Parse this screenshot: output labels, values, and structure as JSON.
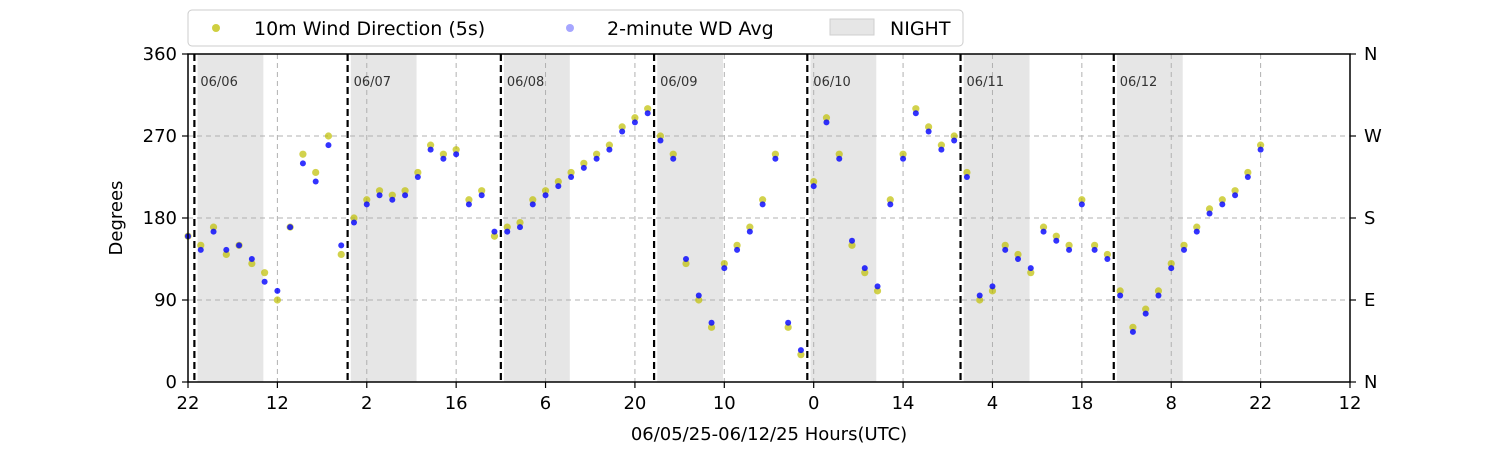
{
  "chart_data": {
    "type": "scatter",
    "xlabel": "06/05/25-06/12/25  Hours(UTC)",
    "ylabel": "Degrees",
    "ylim": [
      0,
      360
    ],
    "xlim_hours": [
      0,
      182
    ],
    "x_ticks": [
      {
        "hour": 0,
        "label": "22"
      },
      {
        "hour": 14,
        "label": "12"
      },
      {
        "hour": 28,
        "label": "2"
      },
      {
        "hour": 42,
        "label": "16"
      },
      {
        "hour": 56,
        "label": "6"
      },
      {
        "hour": 70,
        "label": "20"
      },
      {
        "hour": 84,
        "label": "10"
      },
      {
        "hour": 98,
        "label": "0"
      },
      {
        "hour": 112,
        "label": "14"
      },
      {
        "hour": 126,
        "label": "4"
      },
      {
        "hour": 140,
        "label": "18"
      },
      {
        "hour": 154,
        "label": "8"
      },
      {
        "hour": 168,
        "label": "22"
      },
      {
        "hour": 182,
        "label": "12"
      }
    ],
    "y_ticks": [
      0,
      90,
      180,
      270,
      360
    ],
    "right_ticks": [
      {
        "value": 0,
        "label": "N"
      },
      {
        "value": 90,
        "label": "E"
      },
      {
        "value": 180,
        "label": "S"
      },
      {
        "value": 270,
        "label": "W"
      },
      {
        "value": 360,
        "label": "N"
      }
    ],
    "grid": true,
    "legend_position": "top",
    "legend": [
      {
        "label": "10m Wind Direction (5s)",
        "marker": "dot",
        "color": "#bfbf00"
      },
      {
        "label": "2-minute WD Avg",
        "marker": "dot",
        "color": "#0000ff"
      },
      {
        "label": "NIGHT",
        "marker": "patch",
        "color": "#e6e6e6"
      }
    ],
    "day_boundaries": [
      {
        "hour": 1,
        "label": "06/06"
      },
      {
        "hour": 25,
        "label": "06/07"
      },
      {
        "hour": 49,
        "label": "06/08"
      },
      {
        "hour": 73,
        "label": "06/09"
      },
      {
        "hour": 97,
        "label": "06/10"
      },
      {
        "hour": 121,
        "label": "06/11"
      },
      {
        "hour": 145,
        "label": "06/12"
      }
    ],
    "night_periods": [
      [
        1.5,
        11.8
      ],
      [
        25.5,
        35.8
      ],
      [
        49.5,
        59.8
      ],
      [
        73.5,
        83.8
      ],
      [
        97.5,
        107.8
      ],
      [
        121.5,
        131.8
      ],
      [
        145.5,
        155.8
      ]
    ],
    "series": [
      {
        "name": "10m Wind Direction (5s)",
        "color": "#bfbf00",
        "x": [
          0,
          2,
          4,
          6,
          8,
          10,
          12,
          14,
          16,
          18,
          20,
          22,
          24,
          26,
          28,
          30,
          32,
          34,
          36,
          38,
          40,
          42,
          44,
          46,
          48,
          50,
          52,
          54,
          56,
          58,
          60,
          62,
          64,
          66,
          68,
          70,
          72,
          74,
          76,
          78,
          80,
          82,
          84,
          86,
          88,
          90,
          92,
          94,
          96,
          98,
          100,
          102,
          104,
          106,
          108,
          110,
          112,
          114,
          116,
          118,
          120,
          122,
          124,
          126,
          128,
          130,
          132,
          134,
          136,
          138,
          140,
          142,
          144,
          146,
          148,
          150,
          152,
          154,
          156,
          158,
          160,
          162,
          164,
          166,
          168
        ],
        "y": [
          160,
          150,
          170,
          140,
          150,
          130,
          120,
          90,
          170,
          250,
          230,
          270,
          140,
          180,
          200,
          210,
          205,
          210,
          230,
          260,
          250,
          255,
          200,
          210,
          160,
          170,
          175,
          200,
          210,
          220,
          230,
          240,
          250,
          260,
          280,
          290,
          300,
          270,
          250,
          130,
          90,
          60,
          130,
          150,
          170,
          200,
          250,
          60,
          30,
          220,
          290,
          250,
          150,
          120,
          100,
          200,
          250,
          300,
          280,
          260,
          270,
          230,
          90,
          100,
          150,
          140,
          120,
          170,
          160,
          150,
          200,
          150,
          140,
          100,
          60,
          80,
          100,
          130,
          150,
          170,
          190,
          200,
          210,
          230,
          260
        ]
      },
      {
        "name": "2-minute WD Avg",
        "color": "#0000ff",
        "x": [
          0,
          2,
          4,
          6,
          8,
          10,
          12,
          14,
          16,
          18,
          20,
          22,
          24,
          26,
          28,
          30,
          32,
          34,
          36,
          38,
          40,
          42,
          44,
          46,
          48,
          50,
          52,
          54,
          56,
          58,
          60,
          62,
          64,
          66,
          68,
          70,
          72,
          74,
          76,
          78,
          80,
          82,
          84,
          86,
          88,
          90,
          92,
          94,
          96,
          98,
          100,
          102,
          104,
          106,
          108,
          110,
          112,
          114,
          116,
          118,
          120,
          122,
          124,
          126,
          128,
          130,
          132,
          134,
          136,
          138,
          140,
          142,
          144,
          146,
          148,
          150,
          152,
          154,
          156,
          158,
          160,
          162,
          164,
          166,
          168
        ],
        "y": [
          160,
          145,
          165,
          145,
          150,
          135,
          110,
          100,
          170,
          240,
          220,
          260,
          150,
          175,
          195,
          205,
          200,
          205,
          225,
          255,
          245,
          250,
          195,
          205,
          165,
          165,
          170,
          195,
          205,
          215,
          225,
          235,
          245,
          255,
          275,
          285,
          295,
          265,
          245,
          135,
          95,
          65,
          125,
          145,
          165,
          195,
          245,
          65,
          35,
          215,
          285,
          245,
          155,
          125,
          105,
          195,
          245,
          295,
          275,
          255,
          265,
          225,
          95,
          105,
          145,
          135,
          125,
          165,
          155,
          145,
          195,
          145,
          135,
          95,
          55,
          75,
          95,
          125,
          145,
          165,
          185,
          195,
          205,
          225,
          255
        ]
      }
    ]
  }
}
